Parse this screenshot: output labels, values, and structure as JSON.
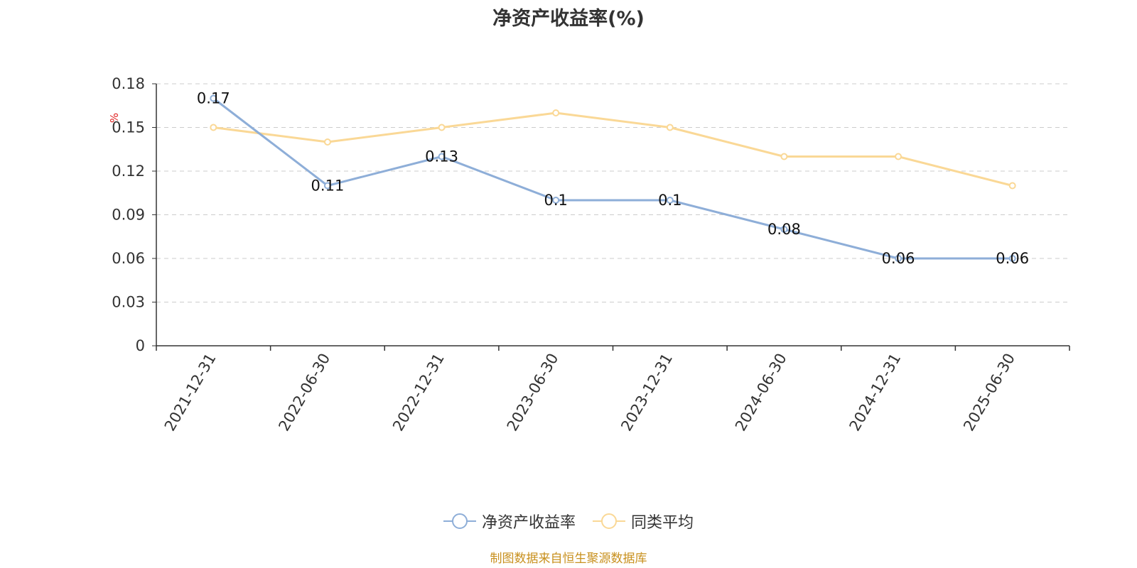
{
  "chart_data": {
    "type": "line",
    "title": "净资产收益率(%)",
    "ylabel": "%",
    "categories": [
      "2021-12-31",
      "2022-06-30",
      "2022-12-31",
      "2023-06-30",
      "2023-12-31",
      "2024-06-30",
      "2024-12-31",
      "2025-06-30"
    ],
    "yticks": [
      "0",
      "0.03",
      "0.06",
      "0.09",
      "0.12",
      "0.15",
      "0.18"
    ],
    "ylim": [
      0,
      0.18
    ],
    "grid": true,
    "legend_position": "bottom",
    "series": [
      {
        "name": "净资产收益率",
        "color": "#8eaed8",
        "values": [
          0.17,
          0.11,
          0.13,
          0.1,
          0.1,
          0.08,
          0.06,
          0.06
        ],
        "labels": [
          "0.17",
          "0.11",
          "0.13",
          "0.1",
          "0.1",
          "0.08",
          "0.06",
          "0.06"
        ],
        "show_labels": true
      },
      {
        "name": "同类平均",
        "color": "#fad896",
        "values": [
          0.15,
          0.14,
          0.15,
          0.16,
          0.15,
          0.13,
          0.13,
          0.11
        ],
        "show_labels": false
      }
    ]
  },
  "footer": {
    "source": "制图数据来自恒生聚源数据库"
  }
}
